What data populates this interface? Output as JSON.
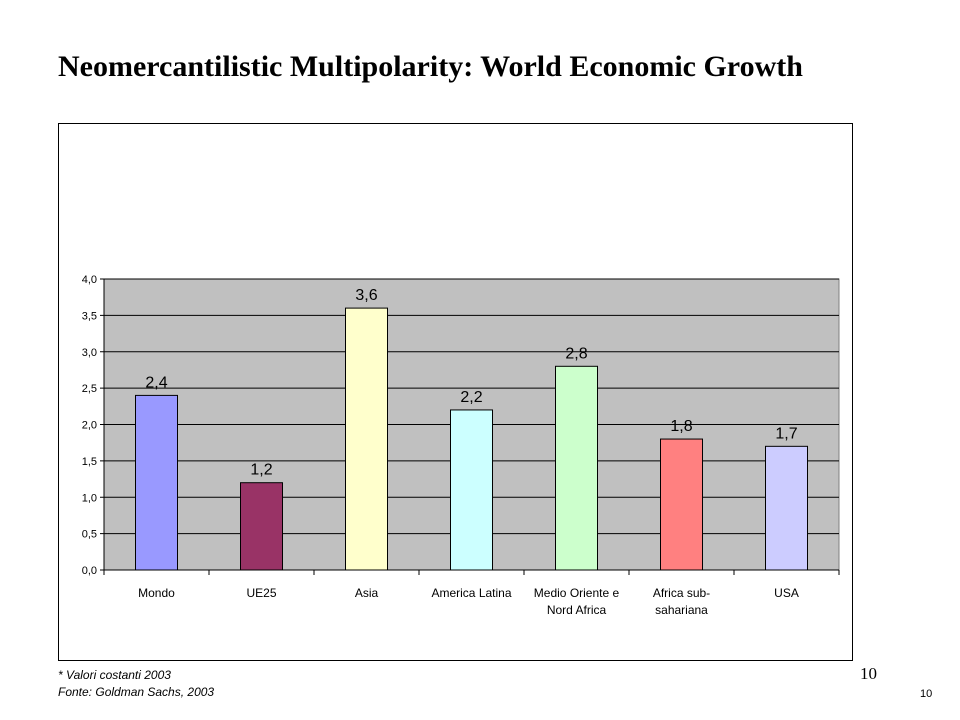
{
  "slide": {
    "title": "Neomercantilistic Multipolarity: World Economic Growth",
    "footnote_1": "* Valori costanti 2003",
    "footnote_2": "Fonte: Goldman Sachs, 2003",
    "page_number": "10",
    "page_number_small": "10"
  },
  "chart_data": {
    "type": "bar",
    "title": "",
    "xlabel": "",
    "ylabel": "",
    "ylim": [
      0,
      4
    ],
    "grid": true,
    "legend": "none",
    "plot_background": "#c0c0c0",
    "y_ticks": [
      "0,0",
      "0,5",
      "1,0",
      "1,5",
      "2,0",
      "2,5",
      "3,0",
      "3,5",
      "4,0"
    ],
    "categories": [
      [
        "Mondo"
      ],
      [
        "UE25"
      ],
      [
        "Asia"
      ],
      [
        "America Latina"
      ],
      [
        "Medio Oriente e",
        "Nord Africa"
      ],
      [
        "Africa sub-",
        "sahariana"
      ],
      [
        "USA"
      ]
    ],
    "values": [
      2.4,
      1.2,
      3.6,
      2.2,
      2.8,
      1.8,
      1.7
    ],
    "data_labels": [
      "2,4",
      "1,2",
      "3,6",
      "2,2",
      "2,8",
      "1,8",
      "1,7"
    ],
    "colors": [
      "#9999ff",
      "#993366",
      "#ffffcc",
      "#ccffff",
      "#ccffcc",
      "#ff8080",
      "#ccccff"
    ]
  }
}
